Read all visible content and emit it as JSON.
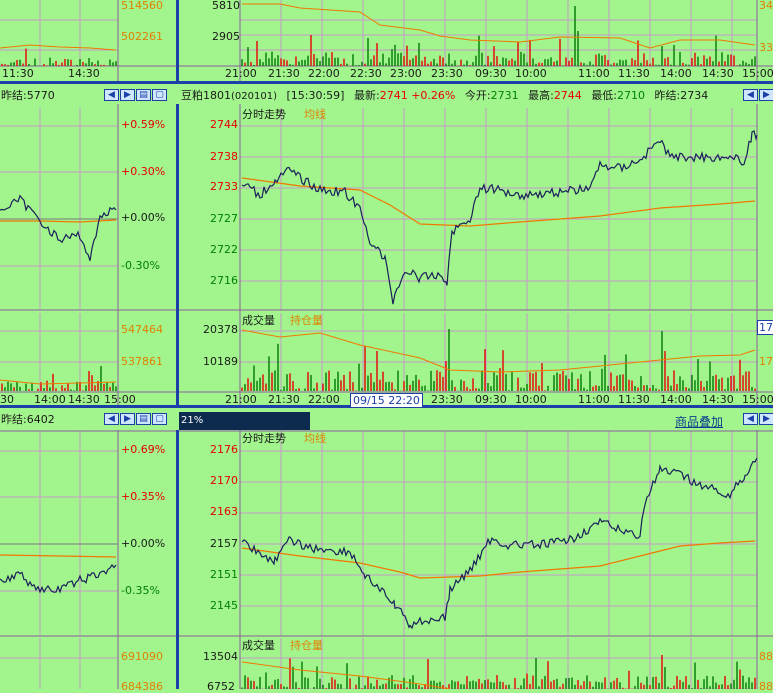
{
  "colors": {
    "bg": "#a2f58d",
    "grid": "#c49ac8",
    "divider": "#1c3fa8",
    "price_line": "#1a1f5a",
    "avg_line": "#f07800",
    "vol_red": "#e60000",
    "vol_green": "#007800",
    "up": "#e60000",
    "down": "#008000"
  },
  "top_left": {
    "axis_vals": [
      "514560",
      "502261"
    ],
    "time_ticks": [
      "11:30",
      "14:30"
    ]
  },
  "top_main": {
    "axis_vals": [
      "5810",
      "2905"
    ],
    "time_ticks": [
      "21:00",
      "21:30",
      "22:00",
      "22:30",
      "23:00",
      "23:30",
      "09:30",
      "10:00",
      "11:00",
      "11:30",
      "14:00",
      "14:30",
      "15:00"
    ],
    "right_axis": "34",
    "right_axis2": "33"
  },
  "mid_left": {
    "prev_settle_label": "昨结:5770",
    "pct_ticks": [
      "+0.59%",
      "+0.30%",
      "+0.00%",
      "-0.30%"
    ],
    "vol_vals": [
      "547464",
      "537861"
    ],
    "time_ticks": [
      "30",
      "14:00",
      "14:30",
      "15:00"
    ]
  },
  "mid_main": {
    "title": "豆粕1801",
    "code": "(020101)",
    "time": "[15:30:59]",
    "latest_label": "最新:",
    "latest_val": "2741",
    "latest_pct": "+0.26%",
    "open_label": "今开:",
    "open_val": "2731",
    "high_label": "最高:",
    "high_val": "2744",
    "low_label": "最低:",
    "low_val": "2710",
    "prev_label": "昨结:",
    "prev_val": "2734",
    "legend_trend": "分时走势",
    "legend_avg": "均线",
    "price_ticks": [
      "2744",
      "2738",
      "2733",
      "2727",
      "2722",
      "2716"
    ],
    "vol_legend": "成交量",
    "oi_legend": "持仓量",
    "vol_ticks": [
      "20378",
      "10189"
    ],
    "time_ticks": [
      "21:00",
      "21:30",
      "22:00",
      "23:30",
      "09:30",
      "10:00",
      "11:00",
      "11:30",
      "14:00",
      "14:30",
      "15:00"
    ],
    "tooltip": "09/15 22:20",
    "right_vol": "17",
    "right_vol2": "17"
  },
  "bot_left": {
    "prev_settle_label": "昨结:6402",
    "pct_ticks": [
      "+0.69%",
      "+0.35%",
      "+0.00%",
      "-0.35%"
    ],
    "vol_vals": [
      "691090",
      "684386"
    ]
  },
  "bot_main": {
    "progress": "21%",
    "progress_fraction": 0.21,
    "overlay_link": "商品叠加",
    "legend_trend": "分时走势",
    "legend_avg": "均线",
    "price_ticks": [
      "2176",
      "2170",
      "2163",
      "2157",
      "2151",
      "2145"
    ],
    "vol_legend": "成交量",
    "oi_legend": "持仓量",
    "vol_ticks": [
      "13504",
      "6752"
    ],
    "right_vol": "88",
    "right_vol2": "88"
  },
  "button_icons": [
    "left-arrow-icon",
    "right-arrow-icon",
    "panel-icon",
    "window-icon"
  ]
}
